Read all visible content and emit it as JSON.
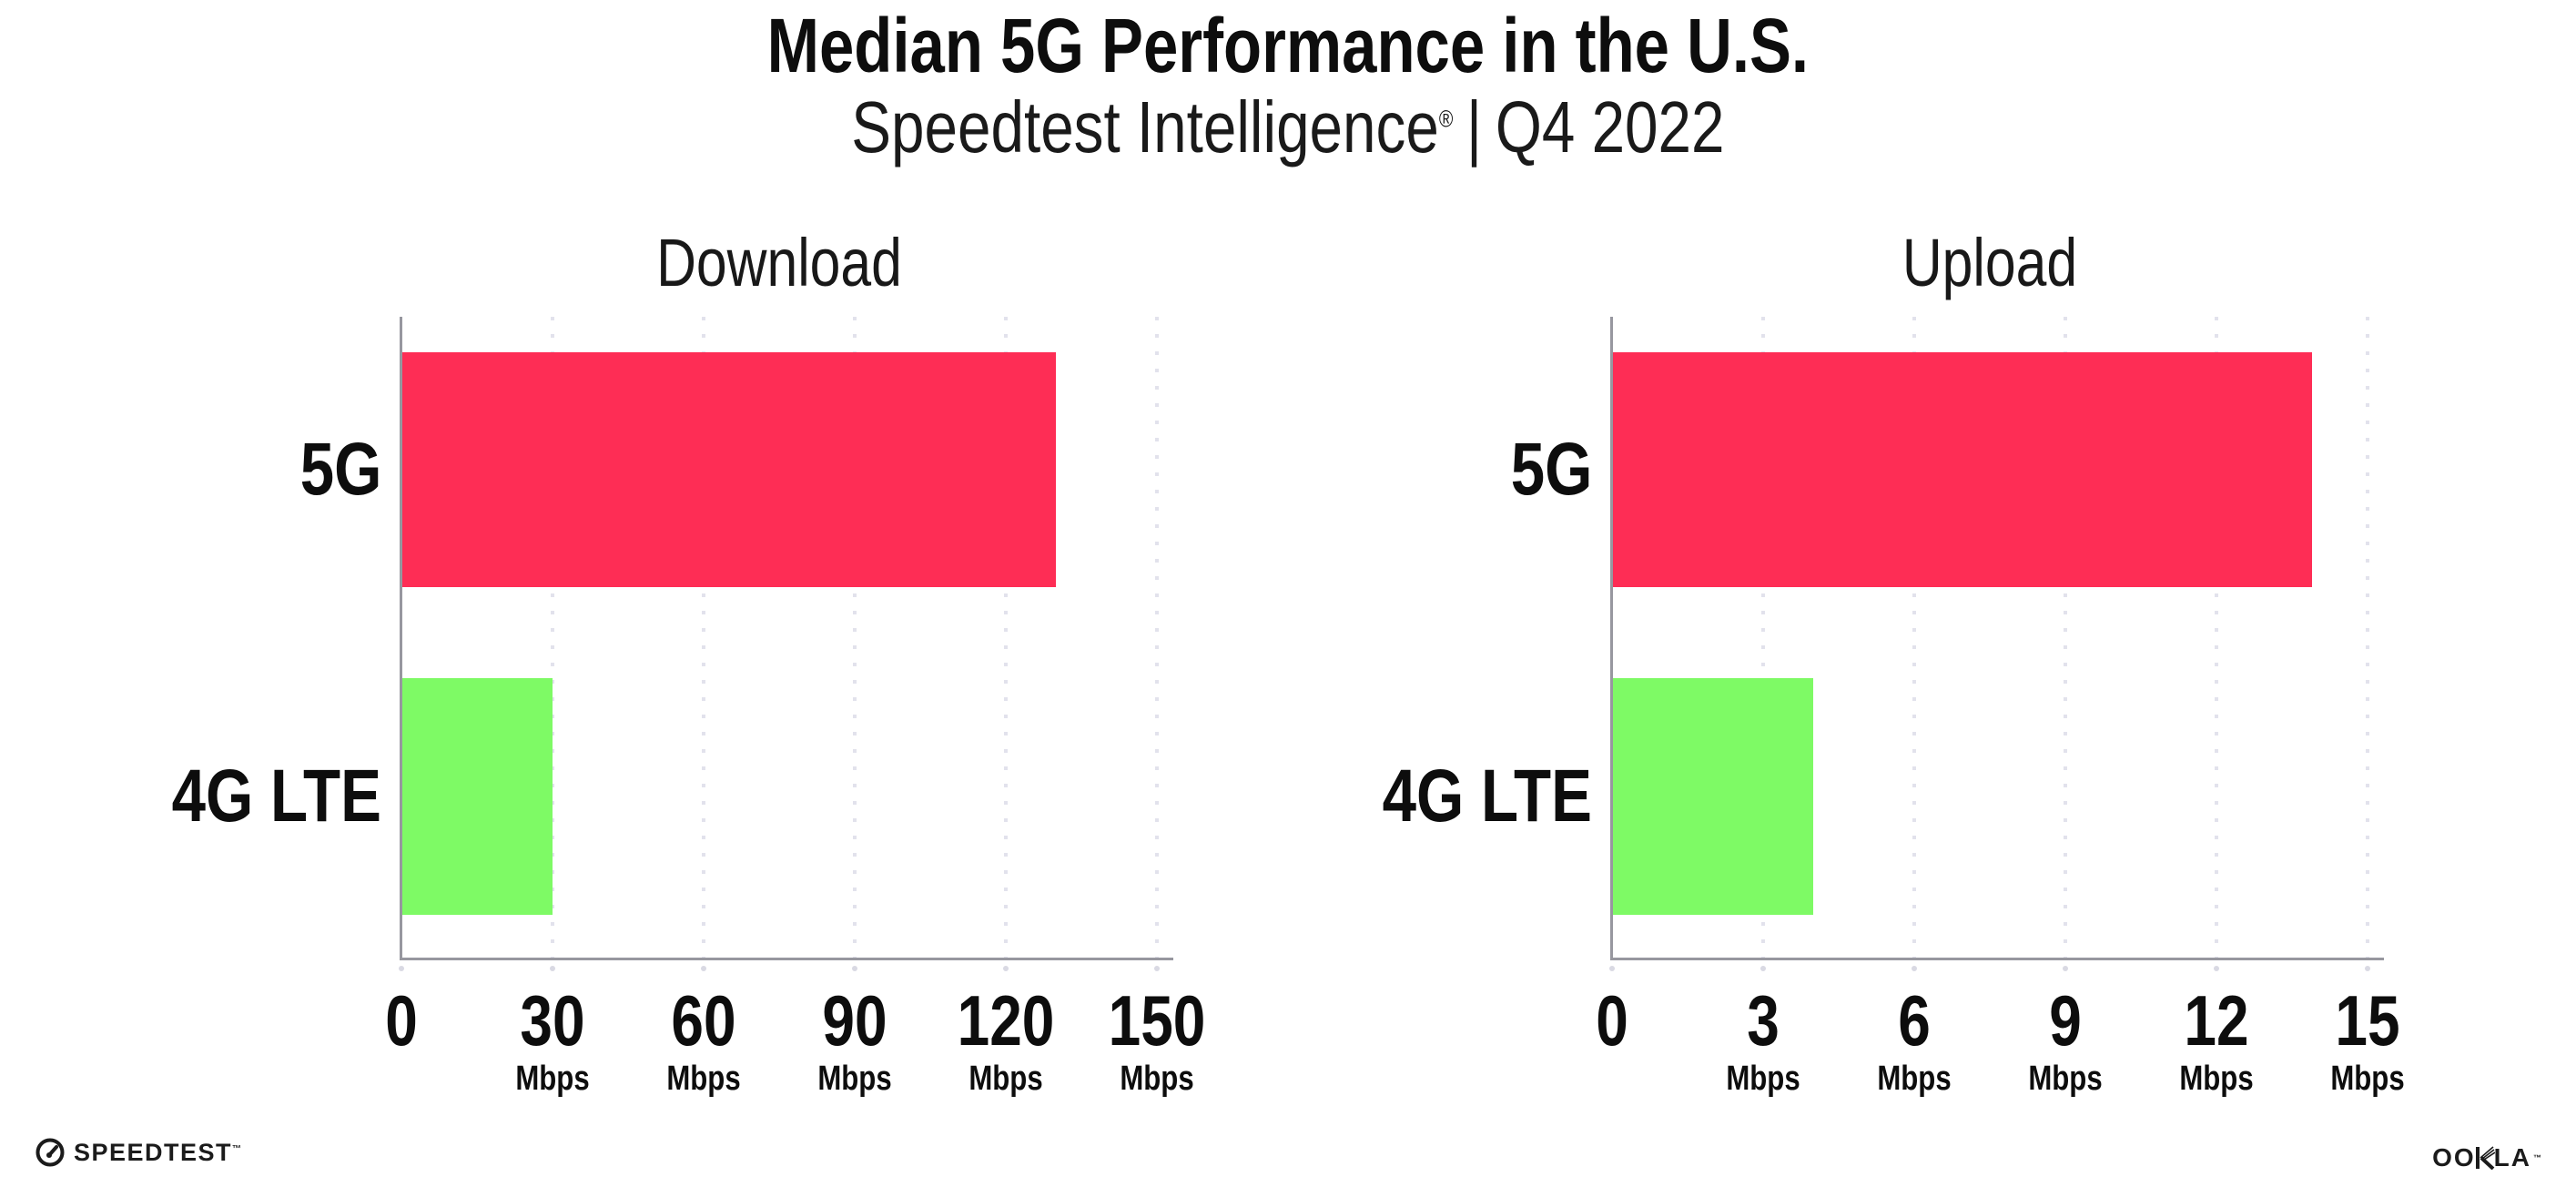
{
  "header": {
    "title": "Median 5G Performance in the U.S.",
    "subtitle_brand": "Speedtest Intelligence",
    "subtitle_reg": "®",
    "subtitle_sep": "|",
    "subtitle_period": "Q4 2022"
  },
  "colors": {
    "bar_5g": "#FE2D55",
    "bar_4g_lte": "#7EFA65",
    "axis": "#97979f",
    "gridline": "#e2e2ec",
    "text": "#111111"
  },
  "chart_data": [
    {
      "type": "bar",
      "orientation": "horizontal",
      "title": "Download",
      "categories": [
        "5G",
        "4G LTE"
      ],
      "values": [
        130,
        30
      ],
      "series_colors": [
        "#FE2D55",
        "#7EFA65"
      ],
      "unit": "Mbps",
      "xlim": [
        0,
        150
      ],
      "xticks": [
        0,
        30,
        60,
        90,
        120,
        150
      ],
      "grid": "dotted-vertical",
      "legend": "none"
    },
    {
      "type": "bar",
      "orientation": "horizontal",
      "title": "Upload",
      "categories": [
        "5G",
        "4G LTE"
      ],
      "values": [
        13.9,
        4
      ],
      "series_colors": [
        "#FE2D55",
        "#7EFA65"
      ],
      "unit": "Mbps",
      "xlim": [
        0,
        15
      ],
      "xticks": [
        0,
        3,
        6,
        9,
        12,
        15
      ],
      "grid": "dotted-vertical",
      "legend": "none"
    }
  ],
  "footer": {
    "speedtest_label": "SPEEDTEST",
    "speedtest_tm": "™",
    "ookla_label_left": "OO",
    "ookla_label_right": "LA",
    "ookla_tm": "™"
  }
}
